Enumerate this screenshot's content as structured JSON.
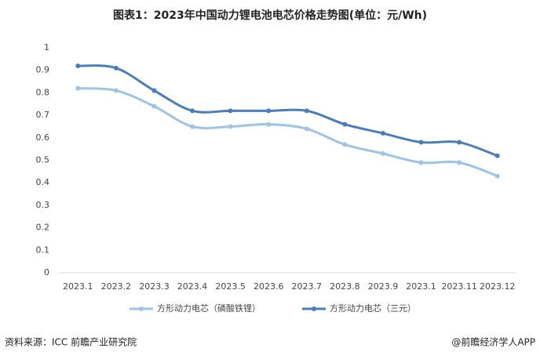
{
  "chart_data": {
    "type": "line",
    "title": "图表1：2023年中国动力锂电池电芯价格走势图(单位：元/Wh)",
    "categories": [
      "2023.1",
      "2023.2",
      "2023.3",
      "2023.4",
      "2023.5",
      "2023.6",
      "2023.7",
      "2023.8",
      "2023.9",
      "2023.1",
      "2023.11",
      "2023.12"
    ],
    "series": [
      {
        "name": "方形动力电芯（磷酸铁锂）",
        "color": "#9dc3e6",
        "values": [
          0.82,
          0.81,
          0.74,
          0.65,
          0.65,
          0.66,
          0.64,
          0.57,
          0.53,
          0.49,
          0.49,
          0.43
        ]
      },
      {
        "name": "方形动力电芯（三元）",
        "color": "#4a7ebb",
        "values": [
          0.92,
          0.91,
          0.81,
          0.72,
          0.72,
          0.72,
          0.72,
          0.66,
          0.62,
          0.58,
          0.58,
          0.52
        ]
      }
    ],
    "ylim": [
      0,
      1
    ],
    "yticks": [
      0,
      0.1,
      0.2,
      0.3,
      0.4,
      0.5,
      0.6,
      0.7,
      0.8,
      0.9,
      1
    ],
    "grid": false,
    "smooth": true,
    "legend": "bottom"
  },
  "footer": {
    "source": "资料来源：ICC 前瞻产业研究院",
    "credit": "@前瞻经济学人APP"
  }
}
